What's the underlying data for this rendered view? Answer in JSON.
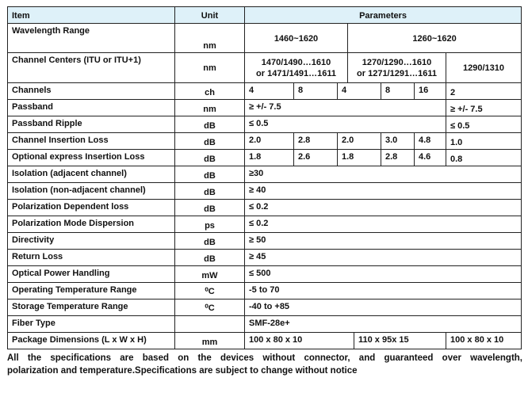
{
  "header": {
    "item": "Item",
    "unit": "Unit",
    "parameters": "Parameters"
  },
  "rows": {
    "wavelength": {
      "item": "Wavelength Range",
      "unit": "nm",
      "v": [
        "1460~1620",
        "1260~1620"
      ]
    },
    "centers": {
      "item": "Channel Centers (ITU or ITU+1)",
      "unit": "nm",
      "v": [
        "1470/1490…1610",
        "or 1471/1491…1611",
        "1270/1290…1610",
        "or 1271/1291…1611",
        "1290/1310"
      ]
    },
    "channels": {
      "item": "Channels",
      "unit": "ch",
      "v": [
        "4",
        "8",
        "4",
        "8",
        "16",
        "2"
      ]
    },
    "passband": {
      "item": "Passband",
      "unit": "nm",
      "v": [
        "≥ +/- 7.5",
        "≥ +/- 7.5"
      ]
    },
    "ripple": {
      "item": "Passband Ripple",
      "unit": "dB",
      "v": [
        "≤ 0.5",
        "≤ 0.5"
      ]
    },
    "cil": {
      "item": "Channel Insertion Loss",
      "unit": "dB",
      "v": [
        "2.0",
        "2.8",
        "2.0",
        "3.0",
        "4.8",
        "1.0"
      ]
    },
    "oeil": {
      "item": "Optional express Insertion Loss",
      "unit": "dB",
      "v": [
        "1.8",
        "2.6",
        "1.8",
        "2.8",
        "4.6",
        "0.8"
      ]
    },
    "iso_adj": {
      "item": "Isolation (adjacent channel)",
      "unit": "dB",
      "v": "≥30"
    },
    "iso_non": {
      "item": "Isolation (non-adjacent channel)",
      "unit": "dB",
      "v": "≥ 40"
    },
    "pdl": {
      "item": "Polarization Dependent loss",
      "unit": "dB",
      "v": "≤ 0.2"
    },
    "pmd": {
      "item": "Polarization Mode Dispersion",
      "unit": "ps",
      "v": "≤ 0.2"
    },
    "directivity": {
      "item": "Directivity",
      "unit": "dB",
      "v": "≥ 50"
    },
    "return_loss": {
      "item": "Return Loss",
      "unit": "dB",
      "v": "≥ 45"
    },
    "power": {
      "item": "Optical Power Handling",
      "unit": "mW",
      "v": "≤ 500"
    },
    "op_temp": {
      "item": "Operating Temperature Range",
      "unit": "⁰C",
      "v": "-5 to 70"
    },
    "st_temp": {
      "item": "Storage Temperature Range",
      "unit": "⁰C",
      "v": "-40 to +85"
    },
    "fiber": {
      "item": "Fiber Type",
      "unit": "",
      "v": "SMF-28e+"
    },
    "package": {
      "item": "Package Dimensions (L x W x H)",
      "unit": "mm",
      "v": [
        "100 x 80 x 10",
        "110 x 95x 15",
        "100 x 80 x 10"
      ]
    }
  },
  "note": [
    "All the specifications are based on the devices without connector, and guaranteed over wavelength,",
    "polarization and temperature.Specifications are subject to change without notice"
  ],
  "colors": {
    "header_bg": "#def1f9",
    "border": "#222222"
  }
}
